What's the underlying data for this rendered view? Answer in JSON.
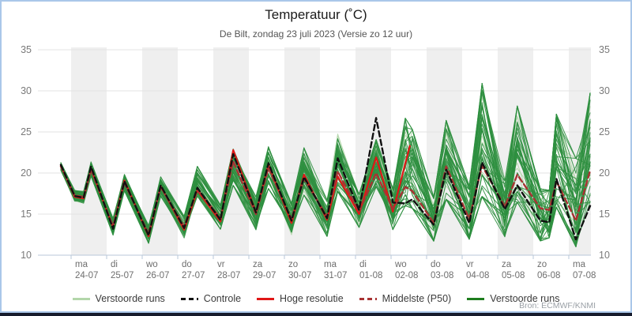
{
  "header": {
    "title": "Temperatuur (˚C)",
    "subtitle": "De Bilt, zondag 23 juli 2023 (Versie zo 12 uur)"
  },
  "source": "Bron: ECMWF/KNMI",
  "legend": {
    "items": [
      {
        "label": "Verstoorde runs",
        "color": "#b3d6aa",
        "style": "solid"
      },
      {
        "label": "Controle",
        "color": "#111111",
        "style": "dashed"
      },
      {
        "label": "Hoge resolutie",
        "color": "#e01717",
        "style": "solid"
      },
      {
        "label": "Middelste (P50)",
        "color": "#a83232",
        "style": "dashed"
      },
      {
        "label": "Verstoorde runs",
        "color": "#1e7d1e",
        "style": "solid"
      }
    ]
  },
  "chart_data": {
    "type": "line",
    "title": "Temperatuur (˚C)",
    "subtitle": "De Bilt, zondag 23 juli 2023 (Versie zo 12 uur)",
    "ylabel": "",
    "ylim": [
      10,
      35
    ],
    "yticks": [
      10,
      15,
      20,
      25,
      30,
      35
    ],
    "y_axis_both_sides": true,
    "grid": "horizontal",
    "band_shading": "alternate-day-grey",
    "legend_position": "bottom-center",
    "x_unit": "days since 2023-07-24 00:00",
    "x_range": [
      -0.93,
      14.62
    ],
    "categories": [
      {
        "day": "ma",
        "date": "24-07"
      },
      {
        "day": "di",
        "date": "25-07"
      },
      {
        "day": "wo",
        "date": "26-07"
      },
      {
        "day": "do",
        "date": "27-07"
      },
      {
        "day": "vr",
        "date": "28-07"
      },
      {
        "day": "za",
        "date": "29-07"
      },
      {
        "day": "zo",
        "date": "30-07"
      },
      {
        "day": "ma",
        "date": "31-07"
      },
      {
        "day": "di",
        "date": "01-08"
      },
      {
        "day": "wo",
        "date": "02-08"
      },
      {
        "day": "do",
        "date": "03-08"
      },
      {
        "day": "vr",
        "date": "04-08"
      },
      {
        "day": "za",
        "date": "05-08"
      },
      {
        "day": "zo",
        "date": "06-08"
      },
      {
        "day": "ma",
        "date": "07-08"
      }
    ],
    "grid_t": [
      -0.29,
      0.1,
      0.35,
      0.56,
      1.18,
      1.5,
      2.18,
      2.52,
      3.18,
      3.55,
      4.2,
      4.56,
      5.2,
      5.55,
      6.2,
      6.55,
      7.2,
      7.5,
      8.1,
      8.58,
      9.05,
      9.4,
      9.6,
      10.2,
      10.55,
      11.2,
      11.56,
      12.2,
      12.55,
      13.2,
      13.45,
      13.65,
      14.2,
      14.6
    ],
    "series": [
      {
        "name": "Controle",
        "color": "#111111",
        "dash": [
          7,
          4
        ],
        "width": 2.4,
        "t": "grid",
        "v": [
          21.0,
          17.2,
          17.0,
          20.8,
          13.2,
          19.0,
          12.4,
          18.5,
          13.3,
          18.2,
          14.3,
          22.3,
          15.2,
          21.2,
          14.2,
          19.5,
          14.5,
          21.8,
          15.5,
          26.7,
          16.4,
          16.3,
          16.8,
          13.7,
          20.4,
          13.9,
          21.3,
          15.6,
          18.5,
          14.2,
          14.0,
          19.3,
          11.9,
          16.0
        ]
      },
      {
        "name": "Middelste (P50)",
        "color": "#a83232",
        "dash": [
          7,
          4
        ],
        "width": 2.4,
        "t": "grid",
        "v": [
          20.8,
          17.3,
          17.1,
          20.4,
          13.5,
          18.8,
          12.6,
          18.3,
          13.5,
          18.0,
          14.5,
          21.4,
          15.0,
          20.6,
          14.4,
          19.3,
          14.7,
          20.2,
          15.3,
          20.0,
          15.6,
          18.3,
          17.8,
          13.9,
          20.8,
          14.4,
          20.9,
          15.9,
          19.8,
          15.7,
          15.5,
          19.0,
          14.2,
          20.3
        ]
      },
      {
        "name": "Hoge resolutie",
        "color": "#e01717",
        "dash": null,
        "width": 2.2,
        "t": [
          -0.29,
          0.1,
          0.35,
          0.56,
          1.18,
          1.5,
          2.18,
          2.52,
          3.18,
          3.55,
          4.2,
          4.56,
          5.2,
          5.55,
          6.2,
          6.55,
          7.2,
          7.5,
          8.1,
          8.58,
          9.05,
          9.53
        ],
        "v": [
          20.9,
          17.1,
          16.9,
          20.5,
          13.4,
          19.1,
          12.3,
          18.4,
          13.1,
          17.9,
          14.1,
          22.8,
          15.2,
          21.0,
          13.9,
          19.8,
          14.3,
          19.6,
          15.0,
          21.9,
          15.3,
          23.3
        ]
      }
    ],
    "ensemble": {
      "name": "Verstoorde runs",
      "count": 48,
      "seed": 11,
      "color": "#2e8f3f",
      "color_light": "#b3d6aa",
      "width": 1,
      "opacity": 0.9,
      "t": "grid",
      "envelope_hi": [
        21.3,
        18.0,
        17.8,
        21.4,
        14.6,
        19.9,
        13.8,
        19.6,
        14.8,
        20.9,
        16.2,
        23.0,
        17.2,
        23.3,
        16.4,
        23.2,
        16.8,
        24.9,
        17.5,
        24.2,
        18.2,
        26.9,
        25.5,
        17.2,
        26.6,
        18.6,
        31.2,
        19.2,
        28.4,
        18.2,
        18.0,
        27.4,
        22.0,
        30.0
      ],
      "envelope_lo": [
        20.3,
        16.5,
        16.3,
        19.6,
        12.4,
        17.8,
        11.4,
        17.1,
        12.0,
        16.9,
        13.1,
        18.4,
        13.0,
        18.0,
        12.4,
        17.2,
        12.2,
        17.6,
        13.3,
        18.2,
        13.0,
        15.8,
        15.5,
        11.6,
        16.6,
        11.8,
        16.8,
        12.1,
        16.2,
        11.6,
        12.0,
        15.6,
        10.8,
        16.2
      ]
    },
    "colors": {
      "band": "#efefef",
      "gridline": "#e3e3e3",
      "axis": "#b9c7d9",
      "tick_label": "#7a7a7a",
      "x_label": "#6e6e6e"
    }
  }
}
